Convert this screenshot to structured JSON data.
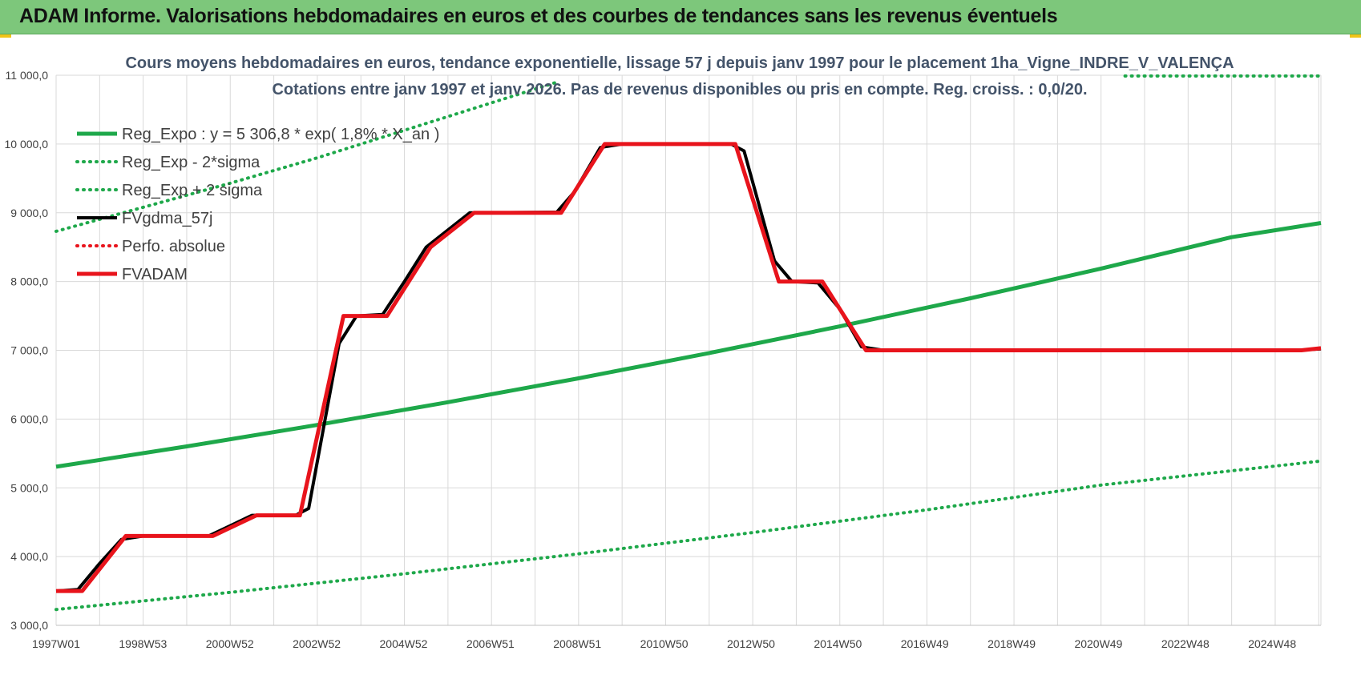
{
  "header": {
    "title": "ADAM Informe. Valorisations hebdomadaires en euros et des courbes de tendances sans les revenus éventuels"
  },
  "colors": {
    "header_bg": "#7dc77b",
    "trend": "#1ea84a",
    "band": "#1ea84a",
    "smoothed": "#000000",
    "absolute": "#e8141c",
    "fvadam": "#e8141c",
    "grid": "#d9d9d9"
  },
  "chart_data": {
    "type": "line",
    "title": "Cours moyens hebdomadaires en euros, tendance exponentielle, lissage 57 j depuis janv 1997 pour le placement 1ha_Vigne_INDRE_V_VALENÇA",
    "subtitle": "Cotations entre janv 1997 et janv 2026. Pas de revenus disponibles ou pris en compte. Reg. croiss. : 0,0/20.",
    "x_tick_labels": [
      "1997W01",
      "1998W53",
      "2000W52",
      "2002W52",
      "2004W52",
      "2006W51",
      "2008W51",
      "2010W50",
      "2012W50",
      "2014W50",
      "2016W49",
      "2018W49",
      "2020W49",
      "2022W48",
      "2024W48"
    ],
    "x_range_years": [
      1997.0,
      2026.05
    ],
    "y_tick_labels": [
      "3 000,0",
      "4 000,0",
      "5 000,0",
      "6 000,0",
      "7 000,0",
      "8 000,0",
      "9 000,0",
      "10 000,0",
      "11 000,0"
    ],
    "ylim": [
      3000,
      11000
    ],
    "grid": true,
    "legend_position": "top-left",
    "series": [
      {
        "name": "Reg_Expo : y = 5 306,8 * exp( 1,8% * X_an )",
        "style": "solid-thick",
        "color": "#1ea84a",
        "x": [
          1997.0,
          2000.0,
          2003.0,
          2006.0,
          2009.0,
          2012.0,
          2015.0,
          2018.0,
          2021.0,
          2024.0,
          2026.05
        ],
        "y": [
          5307,
          5603,
          5915,
          6245,
          6593,
          6960,
          7348,
          7757,
          8189,
          8645,
          8852
        ]
      },
      {
        "name": "Reg_Exp - 2*sigma",
        "style": "dotted",
        "color": "#1ea84a",
        "x": [
          1997.0,
          2001.0,
          2005.0,
          2009.0,
          2013.0,
          2017.0,
          2021.0,
          2026.05
        ],
        "y": [
          3230,
          3480,
          3750,
          4040,
          4350,
          4680,
          5040,
          5390
        ]
      },
      {
        "name": "Reg_Exp + 2 sigma",
        "style": "dotted",
        "color": "#1ea84a",
        "x": [
          1997.0,
          1999.0,
          2001.0,
          2003.0,
          2005.0,
          2007.0,
          2008.5
        ],
        "y": [
          8730,
          9080,
          9430,
          9800,
          10200,
          10600,
          10900
        ]
      },
      {
        "name": "Reg_Exp + 2 sigma (upper segment)",
        "legend": false,
        "style": "dotted",
        "color": "#1ea84a",
        "x": [
          2021.55,
          2026.05
        ],
        "y": [
          10990,
          10990
        ]
      },
      {
        "name": "FVgdma_57j",
        "style": "solid",
        "color": "#000000",
        "x": [
          1997.0,
          1997.5,
          1998.0,
          1998.5,
          1999.0,
          2000.5,
          2001.0,
          2001.5,
          2002.5,
          2002.8,
          2003.5,
          2003.9,
          2004.5,
          2005.0,
          2005.5,
          2006.5,
          2007.0,
          2008.5,
          2008.9,
          2009.5,
          2010.0,
          2012.5,
          2012.8,
          2013.5,
          2013.9,
          2014.5,
          2015.0,
          2015.5,
          2016.0,
          2025.5,
          2026.05
        ],
        "y": [
          3500,
          3520,
          3900,
          4250,
          4300,
          4300,
          4450,
          4600,
          4600,
          4700,
          7100,
          7500,
          7520,
          8000,
          8500,
          9000,
          9000,
          9010,
          9300,
          9950,
          10000,
          10000,
          9900,
          8300,
          8000,
          7980,
          7600,
          7050,
          7000,
          7000,
          7020
        ]
      },
      {
        "name": "Perfo. absolue",
        "style": "dotted",
        "color": "#e8141c",
        "x": [],
        "y": []
      },
      {
        "name": "FVADAM",
        "style": "solid-thick",
        "color": "#e8141c",
        "x": [
          1997.0,
          1997.6,
          1998.6,
          2000.6,
          2001.6,
          2002.6,
          2003.6,
          2004.6,
          2005.6,
          2006.6,
          2008.6,
          2009.6,
          2012.6,
          2013.6,
          2014.6,
          2015.6,
          2025.6,
          2026.05
        ],
        "y": [
          3500,
          3500,
          4300,
          4300,
          4600,
          4600,
          7500,
          7500,
          8500,
          9000,
          9000,
          10000,
          10000,
          8000,
          8000,
          7000,
          7000,
          7030
        ]
      }
    ]
  }
}
